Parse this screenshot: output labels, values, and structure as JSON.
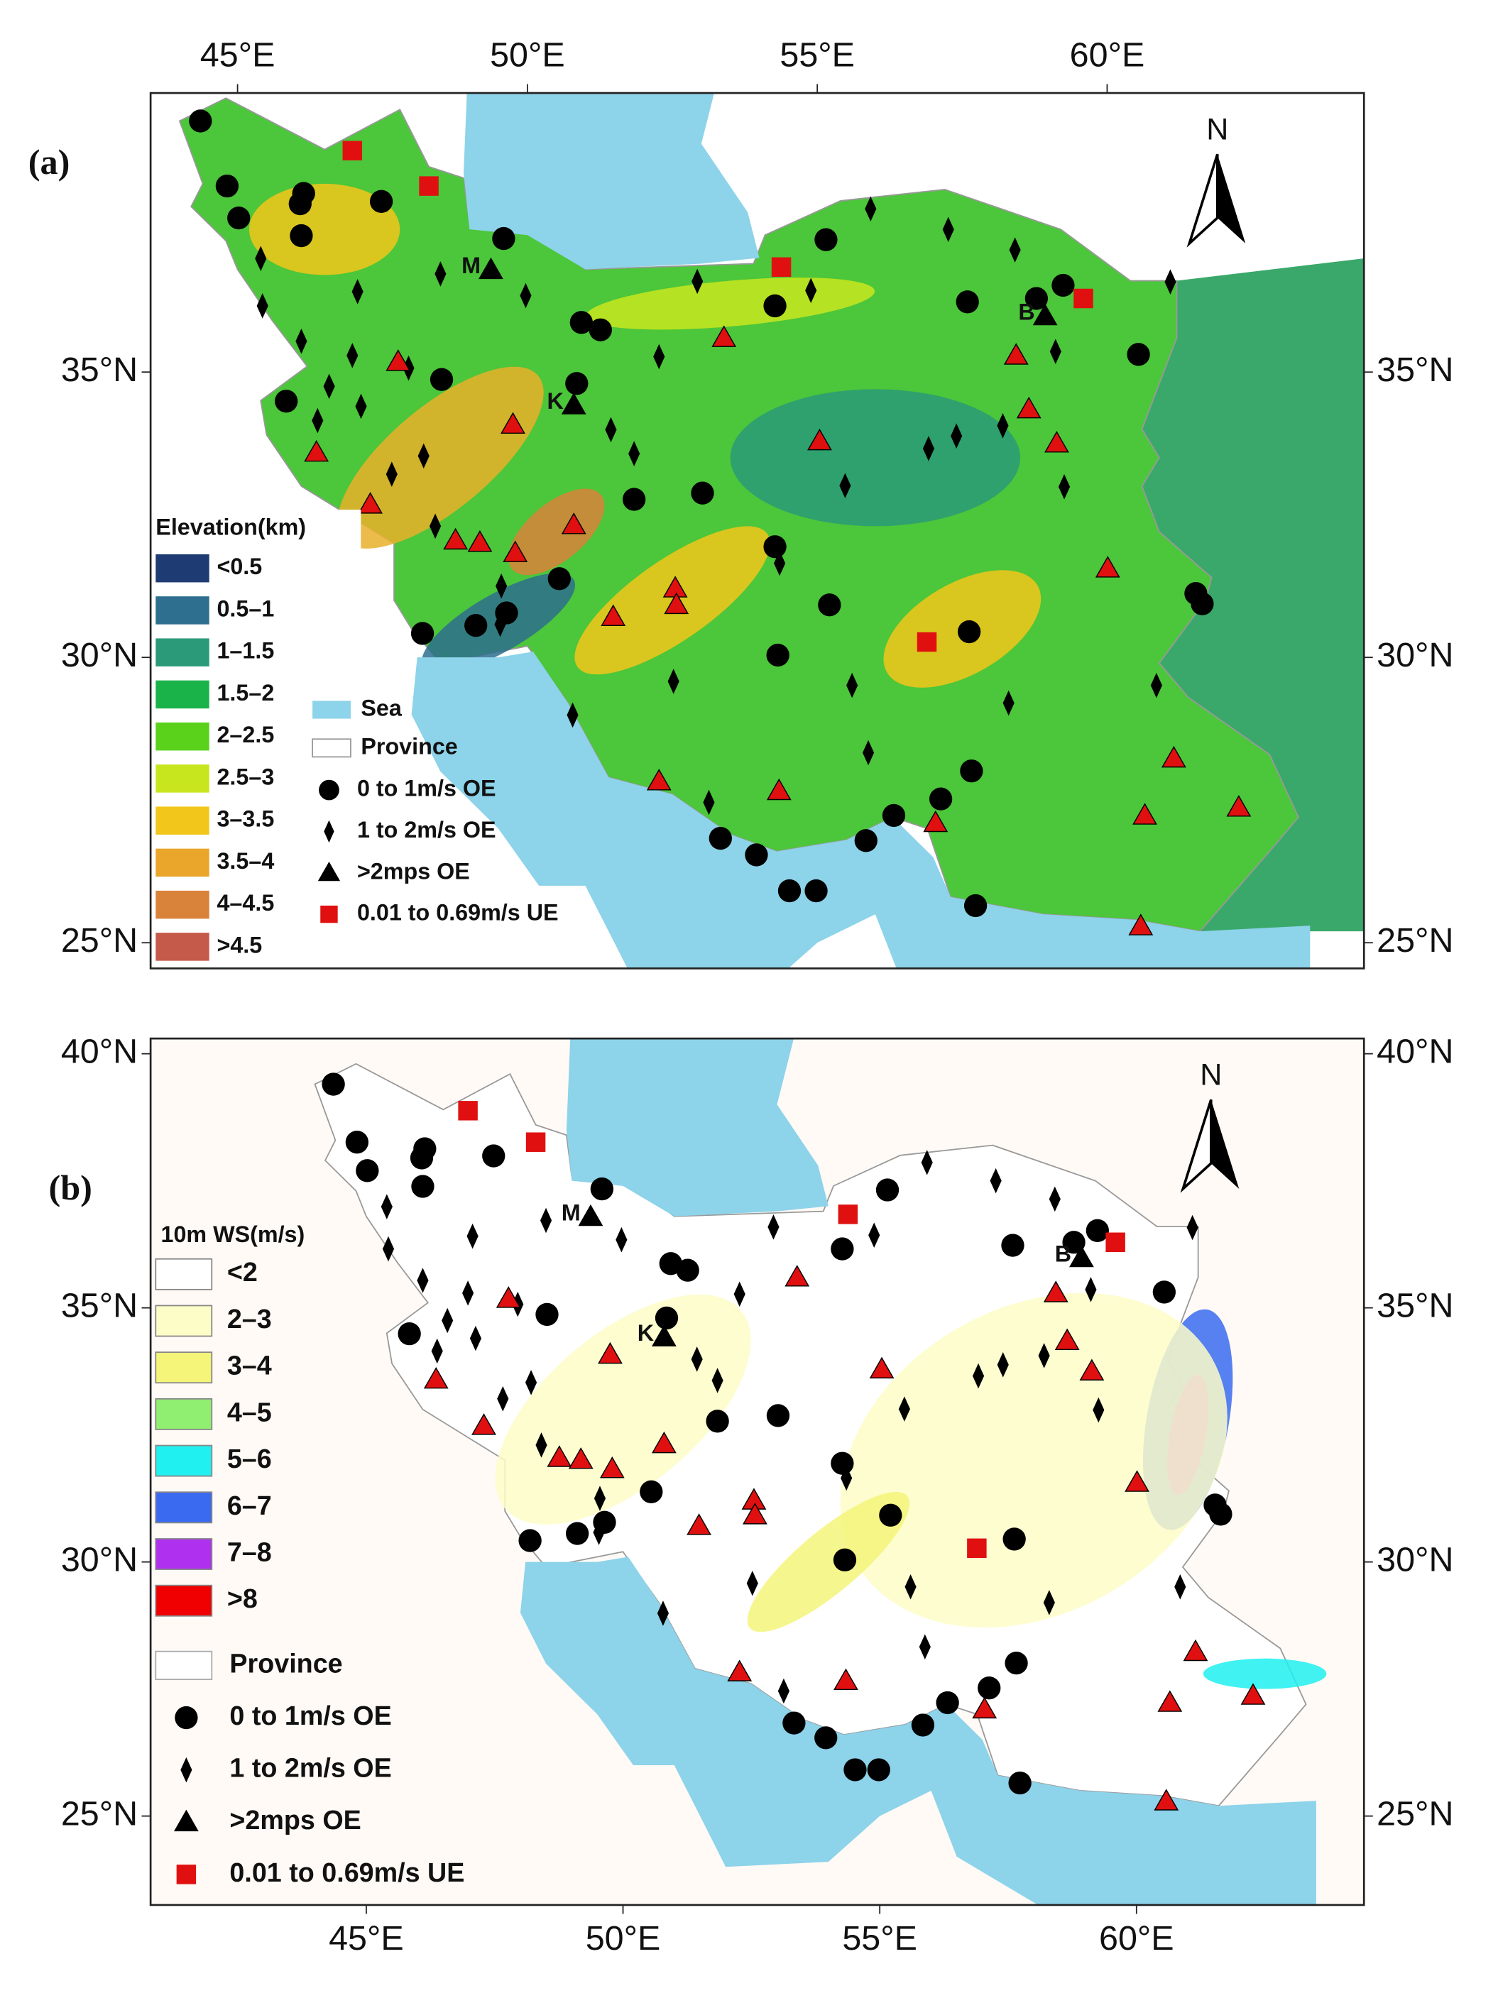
{
  "north_label": "N",
  "sea_label": "Sea",
  "province_label": "Province",
  "panels": [
    {
      "label": "(a)",
      "xlim": [
        43.5,
        64.43
      ],
      "ylim": [
        24.55,
        39.89
      ],
      "xticks": [
        {
          "value": 45,
          "label": "45°E"
        },
        {
          "value": 50,
          "label": "50°E"
        },
        {
          "value": 55,
          "label": "55°E"
        },
        {
          "value": 60,
          "label": "60°E"
        }
      ],
      "yticks": [
        {
          "value": 35,
          "label": "35°N"
        },
        {
          "value": 30,
          "label": "30°N"
        },
        {
          "value": 25,
          "label": "25°N"
        }
      ],
      "legend_title": "Elevation(km)",
      "legend_classes": [
        {
          "label": "<0.5",
          "color": "#1f3b73"
        },
        {
          "label": "0.5–1",
          "color": "#2e6e8e"
        },
        {
          "label": "1–1.5",
          "color": "#2a9a78"
        },
        {
          "label": "1.5–2",
          "color": "#19b34a"
        },
        {
          "label": "2–2.5",
          "color": "#5ad21c"
        },
        {
          "label": "2.5–3",
          "color": "#c8e61e"
        },
        {
          "label": "3–3.5",
          "color": "#f2c61a"
        },
        {
          "label": "3.5–4",
          "color": "#e9a62a"
        },
        {
          "label": "4–4.5",
          "color": "#d9823a"
        },
        {
          "label": ">4.5",
          "color": "#c55a4a"
        }
      ]
    },
    {
      "label": "(b)",
      "xlim": [
        40.8,
        64.43
      ],
      "ylim": [
        23.25,
        40.3
      ],
      "xticks": [
        {
          "value": 45,
          "label": "45°E"
        },
        {
          "value": 50,
          "label": "50°E"
        },
        {
          "value": 55,
          "label": "55°E"
        },
        {
          "value": 60,
          "label": "60°E"
        }
      ],
      "yticks": [
        {
          "value": 40,
          "label": "40°N"
        },
        {
          "value": 35,
          "label": "35°N"
        },
        {
          "value": 30,
          "label": "30°N"
        },
        {
          "value": 25,
          "label": "25°N"
        }
      ],
      "legend_title": "10m WS(m/s)",
      "legend_classes": [
        {
          "label": "<2",
          "color": "#ffffff"
        },
        {
          "label": "2–3",
          "color": "#fdfdc8"
        },
        {
          "label": "3–4",
          "color": "#f5f57a"
        },
        {
          "label": "4–5",
          "color": "#90ee70"
        },
        {
          "label": "5–6",
          "color": "#20f0f0"
        },
        {
          "label": "6–7",
          "color": "#3a6af0"
        },
        {
          "label": "7–8",
          "color": "#b030f0"
        },
        {
          "label": ">8",
          "color": "#f00000"
        }
      ]
    }
  ],
  "stations": [
    {
      "name": "0 to 1m/s OE",
      "marker": "circle",
      "color": "#000000",
      "lon": [
        44.36,
        44.82,
        45.02,
        46.14,
        46.08,
        46.1,
        47.48,
        49.59,
        45.84,
        48.52,
        50.85,
        50.93,
        51.26,
        51.84,
        53.02,
        50.55,
        48.19,
        49.11,
        49.64,
        54.27,
        55.21,
        54.32,
        55.15,
        54.27,
        57.59,
        58.78,
        59.24,
        60.54,
        57.62,
        61.53,
        61.64,
        57.66,
        57.13,
        56.32,
        55.84,
        53.33,
        53.95,
        54.52,
        54.98,
        57.73
      ],
      "lat": [
        39.4,
        38.26,
        37.7,
        38.13,
        37.95,
        37.39,
        37.99,
        37.34,
        34.49,
        34.87,
        34.8,
        35.87,
        35.74,
        32.77,
        32.88,
        31.38,
        30.42,
        30.56,
        30.78,
        31.94,
        30.92,
        30.04,
        37.32,
        36.16,
        36.23,
        36.29,
        36.52,
        35.31,
        30.45,
        31.12,
        30.94,
        28.01,
        27.52,
        27.23,
        26.79,
        26.83,
        26.54,
        25.91,
        25.91,
        25.65
      ]
    },
    {
      "name": "1 to 2m/s OE",
      "marker": "diamond",
      "color": "#000000",
      "lon": [
        45.4,
        45.43,
        46.1,
        46.58,
        46.38,
        47.07,
        46.98,
        47.13,
        47.95,
        47.66,
        48.21,
        48.5,
        49.97,
        48.41,
        49.55,
        49.53,
        50.78,
        51.44,
        51.84,
        52.93,
        52.27,
        53.13,
        52.52,
        54.89,
        55.92,
        55.48,
        54.35,
        55.6,
        55.88,
        57.26,
        58.41,
        59.11,
        56.92,
        57.4,
        58.2,
        59.26,
        58.3,
        61.09,
        60.85
      ],
      "lat": [
        36.99,
        36.16,
        35.54,
        34.75,
        34.15,
        36.41,
        35.29,
        34.4,
        35.07,
        33.21,
        33.53,
        36.72,
        36.34,
        32.3,
        31.25,
        30.58,
        28.99,
        33.99,
        33.57,
        36.59,
        35.27,
        27.46,
        29.58,
        36.43,
        37.86,
        33.01,
        31.65,
        29.51,
        28.33,
        37.5,
        37.14,
        35.36,
        33.66,
        33.88,
        34.06,
        32.99,
        29.2,
        36.58,
        29.51
      ]
    },
    {
      "name": ">2mps OE",
      "marker": "triangle",
      "color": "#000000",
      "lon": [
        49.37,
        50.8,
        58.93
      ],
      "lat": [
        36.79,
        34.42,
        35.98
      ],
      "labels": [
        "M",
        "K",
        "B"
      ]
    },
    {
      "name": "0.01 to 0.69m/s UE",
      "marker": "square",
      "color": "#e01010",
      "lon": [
        46.98,
        48.3,
        54.38,
        59.59,
        56.89
      ],
      "lat": [
        38.88,
        38.26,
        36.84,
        36.29,
        30.27
      ]
    },
    {
      "marker": "triangle",
      "color": "#e01010",
      "lon": [
        47.77,
        46.36,
        47.29,
        49.75,
        48.76,
        49.18,
        49.79,
        50.8,
        52.55,
        52.57,
        51.48,
        53.39,
        55.04,
        52.27,
        54.34,
        57.04,
        58.43,
        58.65,
        59.13,
        60.01,
        61.15,
        60.65,
        62.27,
        60.58
      ],
      "lat": [
        35.18,
        33.59,
        32.68,
        34.08,
        32.05,
        32.01,
        31.83,
        32.32,
        31.21,
        30.92,
        30.71,
        35.6,
        33.79,
        27.83,
        27.66,
        27.1,
        35.29,
        34.35,
        33.75,
        31.56,
        28.23,
        27.23,
        27.37,
        25.29
      ]
    }
  ]
}
